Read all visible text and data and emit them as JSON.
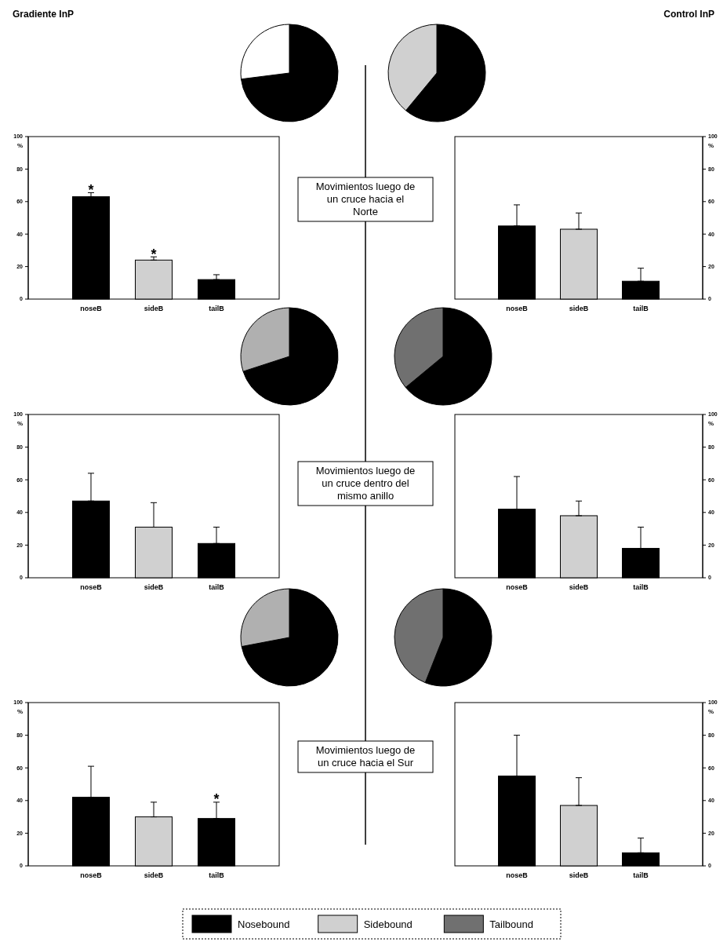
{
  "chart_data": [
    {
      "type": "pie",
      "categories": [
        null,
        null
      ],
      "values": [
        73,
        27
      ],
      "colors": [
        "#000000",
        "#ffffff"
      ]
    },
    {
      "type": "pie",
      "categories": [
        null,
        null
      ],
      "values": [
        61,
        39
      ],
      "colors": [
        "#000000",
        "#d0d0d0"
      ]
    },
    {
      "type": "bar",
      "title": "Gradiente InP",
      "categories": [
        "noseB",
        "sideB",
        "tailB"
      ],
      "values": [
        63,
        24,
        12
      ],
      "errors": [
        [
          63,
          65.5
        ],
        [
          24,
          26
        ],
        [
          12,
          15
        ]
      ],
      "value_labels": [
        "*",
        "*",
        null
      ],
      "colors": [
        "#000000",
        "#d0d0d0",
        "#000000"
      ],
      "ylabel": "%",
      "ylim": [
        0,
        100
      ],
      "yticks": [
        0,
        20,
        40,
        60,
        80,
        100
      ],
      "annotations": [
        "Movimientos luego de un cruce hacia el Norte"
      ]
    },
    {
      "type": "bar",
      "title": "Control InP",
      "categories": [
        "noseB",
        "sideB",
        "tailB"
      ],
      "values": [
        45,
        43,
        11
      ],
      "errors": [
        [
          45,
          58
        ],
        [
          43,
          53
        ],
        [
          11,
          19
        ]
      ],
      "colors": [
        "#000000",
        "#d0d0d0",
        "#000000"
      ],
      "ylabel": "%",
      "ylim": [
        0,
        100
      ],
      "yticks": [
        0,
        20,
        40,
        60,
        80,
        100
      ]
    },
    {
      "type": "pie",
      "categories": [
        null,
        null
      ],
      "values": [
        70,
        30
      ],
      "colors": [
        "#000000",
        "#b0b0b0"
      ]
    },
    {
      "type": "pie",
      "categories": [
        null,
        null
      ],
      "values": [
        64,
        36
      ],
      "colors": [
        "#000000",
        "#707070"
      ]
    },
    {
      "type": "bar",
      "categories": [
        "noseB",
        "sideB",
        "tailB"
      ],
      "values": [
        47,
        31,
        21
      ],
      "errors": [
        [
          47,
          64
        ],
        [
          31,
          46
        ],
        [
          21,
          31
        ]
      ],
      "colors": [
        "#000000",
        "#d0d0d0",
        "#000000"
      ],
      "ylabel": "%",
      "ylim": [
        0,
        100
      ],
      "yticks": [
        0,
        20,
        40,
        60,
        80,
        100
      ],
      "annotations": [
        "Movimientos luego de un cruce dentro del mismo anillo"
      ]
    },
    {
      "type": "bar",
      "categories": [
        "noseB",
        "sideB",
        "tailB"
      ],
      "values": [
        42,
        38,
        18
      ],
      "errors": [
        [
          42,
          62
        ],
        [
          38,
          47
        ],
        [
          18,
          31
        ]
      ],
      "colors": [
        "#000000",
        "#d0d0d0",
        "#000000"
      ],
      "ylabel": "%",
      "ylim": [
        0,
        100
      ],
      "yticks": [
        0,
        20,
        40,
        60,
        80,
        100
      ]
    },
    {
      "type": "pie",
      "categories": [
        null,
        null
      ],
      "values": [
        72,
        28
      ],
      "colors": [
        "#000000",
        "#b0b0b0"
      ]
    },
    {
      "type": "pie",
      "categories": [
        null,
        null
      ],
      "values": [
        56,
        44
      ],
      "colors": [
        "#000000",
        "#707070"
      ]
    },
    {
      "type": "bar",
      "categories": [
        "noseB",
        "sideB",
        "tailB"
      ],
      "values": [
        42,
        30,
        29
      ],
      "errors": [
        [
          42,
          61
        ],
        [
          30,
          39
        ],
        [
          29,
          39
        ]
      ],
      "value_labels": [
        null,
        null,
        "*"
      ],
      "colors": [
        "#000000",
        "#d0d0d0",
        "#000000"
      ],
      "ylabel": "%",
      "ylim": [
        0,
        100
      ],
      "yticks": [
        0,
        20,
        40,
        60,
        80,
        100
      ],
      "annotations": [
        "Movimientos luego de un cruce hacia el Sur"
      ]
    },
    {
      "type": "bar",
      "categories": [
        "noseB",
        "sideB",
        "tailB"
      ],
      "values": [
        55,
        37,
        8
      ],
      "errors": [
        [
          55,
          80
        ],
        [
          37,
          54
        ],
        [
          8,
          17
        ]
      ],
      "colors": [
        "#000000",
        "#d0d0d0",
        "#000000"
      ],
      "ylabel": "%",
      "ylim": [
        0,
        100
      ],
      "yticks": [
        0,
        20,
        40,
        60,
        80,
        100
      ]
    },
    {
      "type": "other",
      "categories": [
        "Nosebound",
        "Sidebound",
        "Tailbound"
      ],
      "colors": [
        "#000000",
        "#d0d0d0",
        "#707070"
      ]
    }
  ]
}
